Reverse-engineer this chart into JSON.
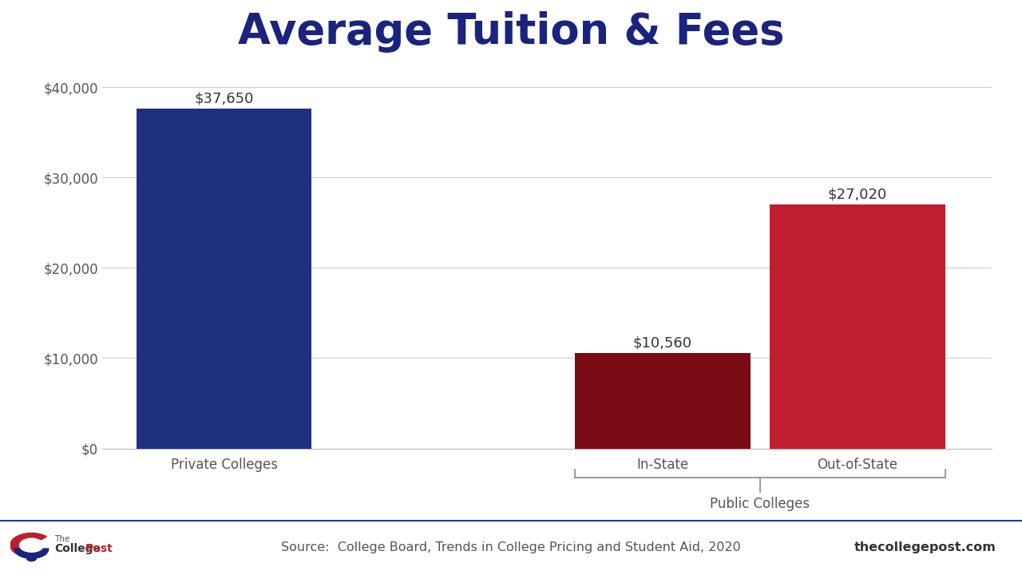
{
  "title": "Average Tuition & Fees",
  "categories": [
    "Private Colleges",
    "In-State",
    "Out-of-State"
  ],
  "values": [
    37650,
    10560,
    27020
  ],
  "bar_colors": [
    "#1f3080",
    "#7a0a14",
    "#be1e2d"
  ],
  "bar_labels": [
    "$37,650",
    "$10,560",
    "$27,020"
  ],
  "group_label": "Public Colleges",
  "ylim": [
    0,
    42000
  ],
  "yticks": [
    0,
    10000,
    20000,
    30000,
    40000
  ],
  "ytick_labels": [
    "$0",
    "$10,000",
    "$20,000",
    "$30,000",
    "$40,000"
  ],
  "source_text": "Source:  College Board, Trends in College Pricing and Student Aid, 2020",
  "website_text": "thecollegepost.com",
  "background_color": "#ffffff",
  "title_color": "#1a237e",
  "title_fontsize": 38,
  "bar_label_fontsize": 13,
  "axis_tick_fontsize": 12,
  "category_fontsize": 12,
  "group_label_fontsize": 12,
  "footer_fontsize": 11.5,
  "grid_color": "#cccccc",
  "footer_separator_color": "#2b3a8c",
  "footer_text_color": "#555555",
  "website_text_color": "#333333"
}
